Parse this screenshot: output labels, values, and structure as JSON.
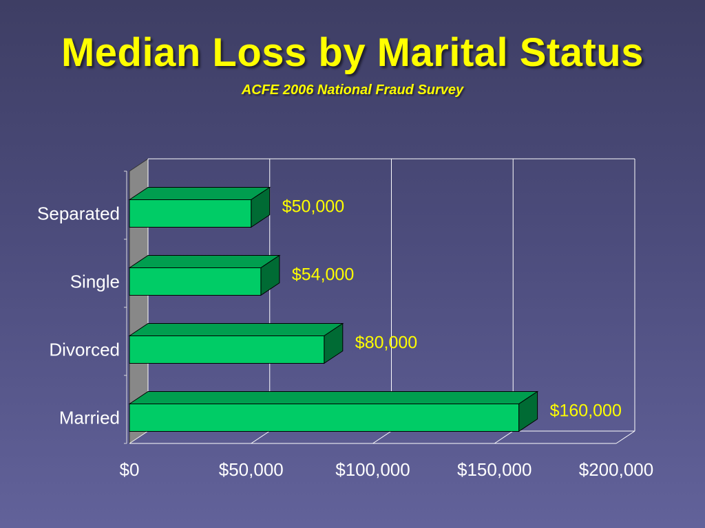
{
  "slide": {
    "title": "Median Loss by Marital Status",
    "subtitle": "ACFE 2006 National Fraud Survey"
  },
  "chart_data": {
    "type": "bar",
    "orientation": "horizontal",
    "style": "3d",
    "title": "",
    "xlabel": "",
    "ylabel": "",
    "categories": [
      "Married",
      "Divorced",
      "Single",
      "Separated"
    ],
    "values": [
      160000,
      80000,
      54000,
      50000
    ],
    "data_labels": [
      "$160,000",
      "$80,000",
      "$54,000",
      "$50,000"
    ],
    "x_ticks": [
      0,
      50000,
      100000,
      150000,
      200000
    ],
    "x_tick_labels": [
      "$0",
      "$50,000",
      "$100,000",
      "$150,000",
      "$200,000"
    ],
    "xlim": [
      0,
      200000
    ],
    "grid": true,
    "colors": {
      "bar_front": "#00cc66",
      "bar_top": "#009e4f",
      "bar_side": "#006b34",
      "back_wall": "#888888",
      "grid": "#ffffff",
      "label": "#ffff00",
      "axis_text": "#ffffff"
    }
  }
}
